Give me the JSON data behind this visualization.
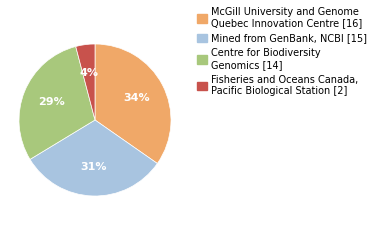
{
  "labels": [
    "McGill University and Genome\nQuebec Innovation Centre [16]",
    "Mined from GenBank, NCBI [15]",
    "Centre for Biodiversity\nGenomics [14]",
    "Fisheries and Oceans Canada,\nPacific Biological Station [2]"
  ],
  "values": [
    34,
    31,
    29,
    4
  ],
  "colors": [
    "#f0a868",
    "#a8c4e0",
    "#a8c87c",
    "#c8524c"
  ],
  "pct_labels": [
    "34%",
    "31%",
    "29%",
    "4%"
  ],
  "startangle": 90,
  "background_color": "#ffffff",
  "text_color": "#ffffff",
  "label_fontsize": 7,
  "pct_fontsize": 8
}
